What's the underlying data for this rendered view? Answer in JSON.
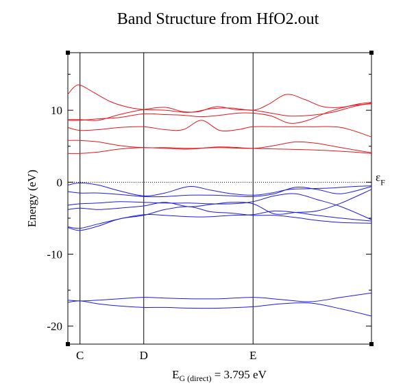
{
  "chart_data": {
    "type": "line",
    "title": "Band Structure from HfO2.out",
    "ylabel": "Energy (eV)",
    "xlabel": "E_G (direct) = 3.795 eV",
    "xlabel_parts": {
      "main": "E",
      "sub": "G (direct)",
      "rest": " = 3.795 eV"
    },
    "ylim": [
      -22.5,
      18
    ],
    "yticks": [
      {
        "value": 10,
        "label": "10"
      },
      {
        "value": 0,
        "label": "0"
      },
      {
        "value": -10,
        "label": "-10"
      },
      {
        "value": -20,
        "label": "-20"
      }
    ],
    "fermi": {
      "value": 0,
      "label_main": "ε",
      "label_sub": "F",
      "style": "dotted"
    },
    "kpoints": [
      {
        "x": 0.04,
        "label": "C"
      },
      {
        "x": 0.25,
        "label": "D"
      },
      {
        "x": 0.61,
        "label": "E"
      }
    ],
    "grid": false,
    "conduction_color": "#e8141c",
    "valence_color": "#1a1ae6",
    "conduction_bands": [
      {
        "x": [
          0.0,
          0.02,
          0.04,
          0.08,
          0.14,
          0.2,
          0.25,
          0.32,
          0.4,
          0.47,
          0.54,
          0.61,
          0.66,
          0.72,
          0.78,
          0.84,
          0.9,
          0.96,
          1.0
        ],
        "y": [
          12.2,
          13.2,
          13.5,
          12.6,
          11.2,
          10.4,
          10.1,
          10.0,
          9.7,
          10.2,
          10.3,
          10.0,
          10.8,
          12.2,
          11.5,
          10.5,
          10.4,
          10.9,
          11.1
        ]
      },
      {
        "x": [
          0.0,
          0.04,
          0.1,
          0.17,
          0.25,
          0.32,
          0.38,
          0.43,
          0.49,
          0.55,
          0.61,
          0.67,
          0.73,
          0.8,
          0.87,
          0.94,
          1.0
        ],
        "y": [
          8.7,
          8.7,
          8.6,
          9.4,
          10.1,
          10.4,
          9.8,
          9.8,
          10.5,
          10.1,
          10.0,
          9.6,
          9.2,
          9.3,
          9.7,
          10.5,
          11.0
        ]
      },
      {
        "x": [
          0.0,
          0.04,
          0.1,
          0.17,
          0.25,
          0.32,
          0.38,
          0.44,
          0.5,
          0.56,
          0.61,
          0.67,
          0.73,
          0.79,
          0.86,
          0.93,
          1.0
        ],
        "y": [
          8.6,
          8.6,
          8.8,
          9.0,
          9.5,
          9.4,
          9.3,
          9.1,
          9.3,
          9.6,
          9.6,
          9.2,
          8.2,
          8.6,
          9.8,
          10.6,
          10.9
        ]
      },
      {
        "x": [
          0.0,
          0.04,
          0.1,
          0.17,
          0.25,
          0.32,
          0.38,
          0.44,
          0.5,
          0.56,
          0.61,
          0.7,
          0.8,
          0.9,
          1.0
        ],
        "y": [
          7.6,
          7.2,
          7.3,
          7.6,
          7.7,
          7.3,
          7.3,
          8.6,
          7.2,
          7.3,
          7.7,
          7.7,
          7.7,
          7.6,
          6.3
        ]
      },
      {
        "x": [
          0.0,
          0.04,
          0.1,
          0.17,
          0.25,
          0.32,
          0.4,
          0.5,
          0.61,
          0.68,
          0.75,
          0.82,
          0.9,
          1.0
        ],
        "y": [
          5.8,
          5.8,
          5.6,
          5.1,
          4.8,
          4.8,
          4.7,
          4.8,
          4.7,
          5.1,
          5.6,
          5.4,
          4.8,
          4.1
        ]
      },
      {
        "x": [
          0.0,
          0.04,
          0.1,
          0.17,
          0.25,
          0.32,
          0.4,
          0.5,
          0.61,
          0.7,
          0.8,
          0.9,
          1.0
        ],
        "y": [
          4.0,
          4.0,
          4.2,
          4.6,
          4.8,
          4.7,
          4.6,
          4.9,
          4.7,
          4.6,
          4.5,
          4.3,
          4.0
        ]
      }
    ],
    "valence_bands": [
      {
        "x": [
          0.0,
          0.04,
          0.1,
          0.17,
          0.25,
          0.32,
          0.4,
          0.47,
          0.54,
          0.61,
          0.67,
          0.73,
          0.8,
          0.87,
          0.94,
          1.0
        ],
        "y": [
          -0.4,
          -0.1,
          -0.4,
          -1.2,
          -1.9,
          -1.5,
          -0.6,
          -1.1,
          -1.6,
          -1.8,
          -1.5,
          -1.0,
          -0.9,
          -0.8,
          -0.6,
          -0.5
        ]
      },
      {
        "x": [
          0.0,
          0.04,
          0.1,
          0.17,
          0.25,
          0.32,
          0.4,
          0.47,
          0.54,
          0.61,
          0.68,
          0.75,
          0.82,
          0.9,
          1.0
        ],
        "y": [
          -1.3,
          -1.5,
          -1.5,
          -1.7,
          -2.0,
          -2.0,
          -1.8,
          -1.8,
          -1.9,
          -2.0,
          -1.6,
          -0.7,
          -1.0,
          -1.6,
          -0.6
        ]
      },
      {
        "x": [
          0.0,
          0.04,
          0.1,
          0.17,
          0.25,
          0.32,
          0.4,
          0.47,
          0.54,
          0.61,
          0.68,
          0.75,
          0.82,
          0.9,
          1.0
        ],
        "y": [
          -3.2,
          -3.0,
          -2.9,
          -2.7,
          -2.8,
          -2.9,
          -2.9,
          -3.0,
          -3.0,
          -2.7,
          -1.9,
          -1.6,
          -2.4,
          -3.4,
          -5.2
        ]
      },
      {
        "x": [
          0.0,
          0.04,
          0.1,
          0.17,
          0.25,
          0.32,
          0.4,
          0.47,
          0.54,
          0.61,
          0.68,
          0.75,
          0.82,
          0.9,
          1.0
        ],
        "y": [
          -3.8,
          -3.6,
          -3.8,
          -3.6,
          -3.3,
          -2.8,
          -3.4,
          -3.1,
          -2.8,
          -3.0,
          -4.4,
          -4.2,
          -4.0,
          -2.9,
          -1.0
        ]
      },
      {
        "x": [
          0.0,
          0.04,
          0.1,
          0.17,
          0.25,
          0.32,
          0.4,
          0.47,
          0.54,
          0.61,
          0.68,
          0.75,
          0.82,
          0.9,
          1.0
        ],
        "y": [
          -6.3,
          -6.7,
          -6.1,
          -5.1,
          -4.6,
          -3.8,
          -3.4,
          -4.1,
          -4.3,
          -4.6,
          -4.6,
          -4.9,
          -5.3,
          -5.6,
          -5.7
        ]
      },
      {
        "x": [
          0.0,
          0.04,
          0.1,
          0.17,
          0.25,
          0.32,
          0.4,
          0.47,
          0.54,
          0.61,
          0.68,
          0.75,
          0.82,
          0.9,
          1.0
        ],
        "y": [
          -6.2,
          -6.4,
          -5.8,
          -5.1,
          -4.5,
          -4.6,
          -4.8,
          -4.8,
          -4.6,
          -4.5,
          -4.0,
          -4.2,
          -4.6,
          -5.0,
          -5.4
        ]
      },
      {
        "x": [
          0.0,
          0.04,
          0.1,
          0.17,
          0.25,
          0.32,
          0.4,
          0.5,
          0.61,
          0.7,
          0.8,
          0.9,
          1.0
        ],
        "y": [
          -16.4,
          -16.5,
          -16.4,
          -16.2,
          -16.0,
          -16.1,
          -16.2,
          -16.2,
          -16.0,
          -16.3,
          -16.6,
          -16.0,
          -15.4
        ]
      },
      {
        "x": [
          0.0,
          0.04,
          0.1,
          0.17,
          0.25,
          0.32,
          0.4,
          0.5,
          0.61,
          0.7,
          0.8,
          0.9,
          1.0
        ],
        "y": [
          -16.7,
          -16.5,
          -16.9,
          -17.2,
          -17.4,
          -17.4,
          -17.5,
          -17.5,
          -17.3,
          -16.9,
          -16.8,
          -17.6,
          -18.6
        ]
      }
    ]
  }
}
